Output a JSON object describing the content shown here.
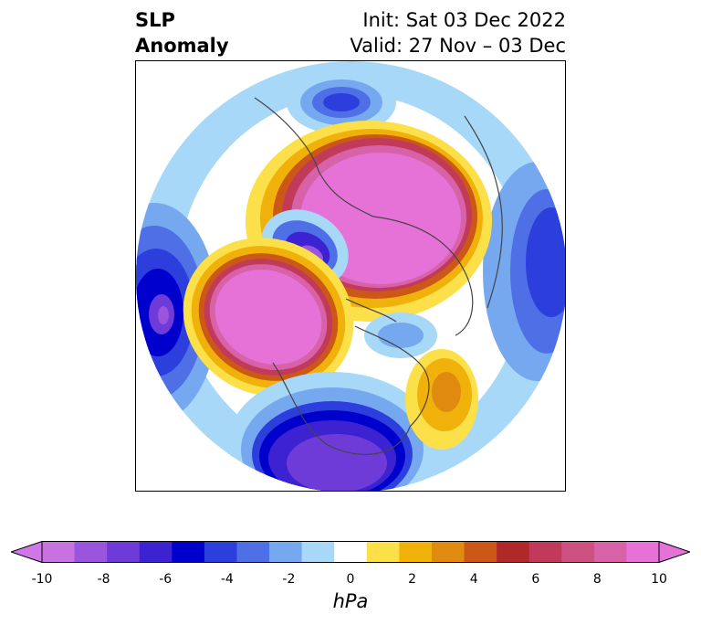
{
  "title": {
    "left_line1": "SLP",
    "left_line2": "Anomaly",
    "right_line1": "Init: Sat 03 Dec 2022",
    "right_line2": "Valid: 27 Nov – 03 Dec"
  },
  "colorbar": {
    "unit": "hPa",
    "ticks": [
      "-10",
      "-8",
      "-6",
      "-4",
      "-2",
      "0",
      "2",
      "4",
      "6",
      "8",
      "10"
    ],
    "levels": [
      -10,
      -9,
      -8,
      -7,
      -6,
      -5,
      -4,
      -3,
      -2,
      -1,
      1,
      2,
      3,
      4,
      5,
      6,
      7,
      8,
      9,
      10
    ],
    "colors": [
      "#c872e0",
      "#9b55dc",
      "#6e3ad8",
      "#3d22d2",
      "#0000cc",
      "#2c3fdc",
      "#4e6fe6",
      "#76a8f0",
      "#a8d8f8",
      "#ffffff",
      "#fbe04a",
      "#f0b20a",
      "#e08a10",
      "#cc5818",
      "#b02828",
      "#c23a5a",
      "#cc5080",
      "#d862a8",
      "#e672d8"
    ],
    "extend_low": "#d077e8",
    "extend_high": "#e672d8"
  },
  "map": {
    "projection": "north-polar-stereographic",
    "anomaly_features": [
      {
        "name": "positive anomaly over Siberia/Arctic",
        "peak_hpa": 10
      },
      {
        "name": "positive anomaly over Gulf of Alaska / NE Pacific",
        "peak_hpa": 10
      },
      {
        "name": "negative anomaly over contiguous US",
        "peak_hpa": -8
      },
      {
        "name": "negative anomaly over Bering Sea",
        "peak_hpa": -9
      },
      {
        "name": "negative anomaly over North Pacific (west)",
        "peak_hpa": -10
      },
      {
        "name": "negative anomaly over Europe",
        "peak_hpa": -6
      },
      {
        "name": "negative anomaly over Scandinavia/N Europe",
        "peak_hpa": -8
      },
      {
        "name": "positive anomaly over central North Atlantic",
        "peak_hpa": 5
      }
    ]
  }
}
